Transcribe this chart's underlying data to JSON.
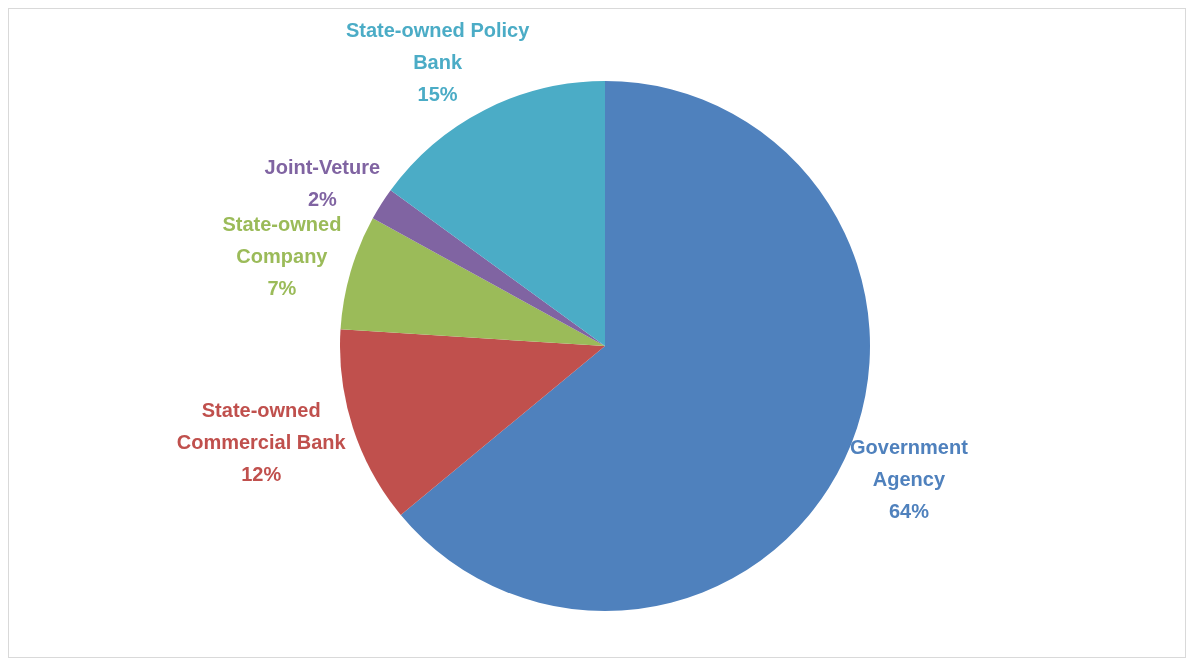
{
  "chart_data": {
    "type": "pie",
    "categories": [
      "Government Agency",
      "State-owned Commercial Bank",
      "State-owned Company",
      "Joint-Veture",
      "State-owned Policy Bank"
    ],
    "values": [
      64,
      12,
      7,
      2,
      15
    ],
    "colors": [
      "#4f81bd",
      "#c0504d",
      "#9bbb59",
      "#8064a2",
      "#4bacc6"
    ],
    "value_labels": [
      "64%",
      "12%",
      "7%",
      "2%",
      "15%"
    ],
    "legend": false
  }
}
